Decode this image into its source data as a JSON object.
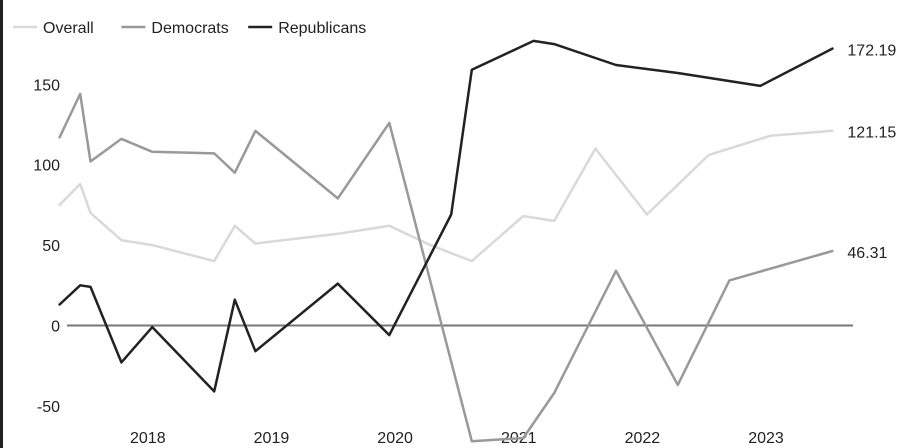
{
  "chart_data": {
    "type": "line",
    "title": "",
    "xlabel": "",
    "ylabel": "",
    "x_ticks": [
      "2018",
      "2019",
      "2020",
      "2021",
      "2022",
      "2023"
    ],
    "y_ticks": [
      150,
      100,
      50,
      0,
      -50
    ],
    "ylim": [
      -70,
      185
    ],
    "xlim": [
      "2017-07",
      "2024-02"
    ],
    "legend_position": "top-left",
    "grid": false,
    "zero_line": true,
    "series": [
      {
        "name": "Overall",
        "color": "#d9d9d9",
        "end_label": "121.15",
        "x": [
          "2017-09",
          "2017-11",
          "2017-12",
          "2018-03",
          "2018-06",
          "2018-12",
          "2019-02",
          "2019-04",
          "2019-12",
          "2020-05",
          "2020-09",
          "2021-01",
          "2021-06",
          "2021-09",
          "2022-01",
          "2022-06",
          "2022-12",
          "2023-06",
          "2023-12"
        ],
        "values": [
          75,
          88,
          70,
          53,
          50,
          40,
          62,
          51,
          57,
          62,
          50,
          40,
          68,
          65,
          110,
          69,
          106,
          118,
          121.15
        ]
      },
      {
        "name": "Democrats",
        "color": "#999999",
        "end_label": "46.31",
        "x": [
          "2017-09",
          "2017-11",
          "2017-12",
          "2018-03",
          "2018-06",
          "2018-12",
          "2019-02",
          "2019-04",
          "2019-12",
          "2020-05",
          "2021-01",
          "2021-06",
          "2021-09",
          "2022-03",
          "2022-09",
          "2023-02",
          "2023-12"
        ],
        "values": [
          117,
          144,
          102,
          116,
          108,
          107,
          95,
          121,
          79,
          126,
          -72,
          -70,
          -42,
          34,
          -37,
          28,
          46.31
        ]
      },
      {
        "name": "Republicans",
        "color": "#222222",
        "end_label": "172.19",
        "x": [
          "2017-09",
          "2017-11",
          "2017-12",
          "2018-03",
          "2018-06",
          "2018-12",
          "2019-02",
          "2019-04",
          "2019-12",
          "2020-05",
          "2020-11",
          "2021-01",
          "2021-07",
          "2021-09",
          "2022-03",
          "2022-09",
          "2023-05",
          "2023-12"
        ],
        "values": [
          13,
          25,
          24,
          -23,
          -1,
          -41,
          16,
          -16,
          26,
          -6,
          69,
          159,
          177,
          175,
          162,
          157,
          149,
          172.19
        ]
      }
    ]
  }
}
